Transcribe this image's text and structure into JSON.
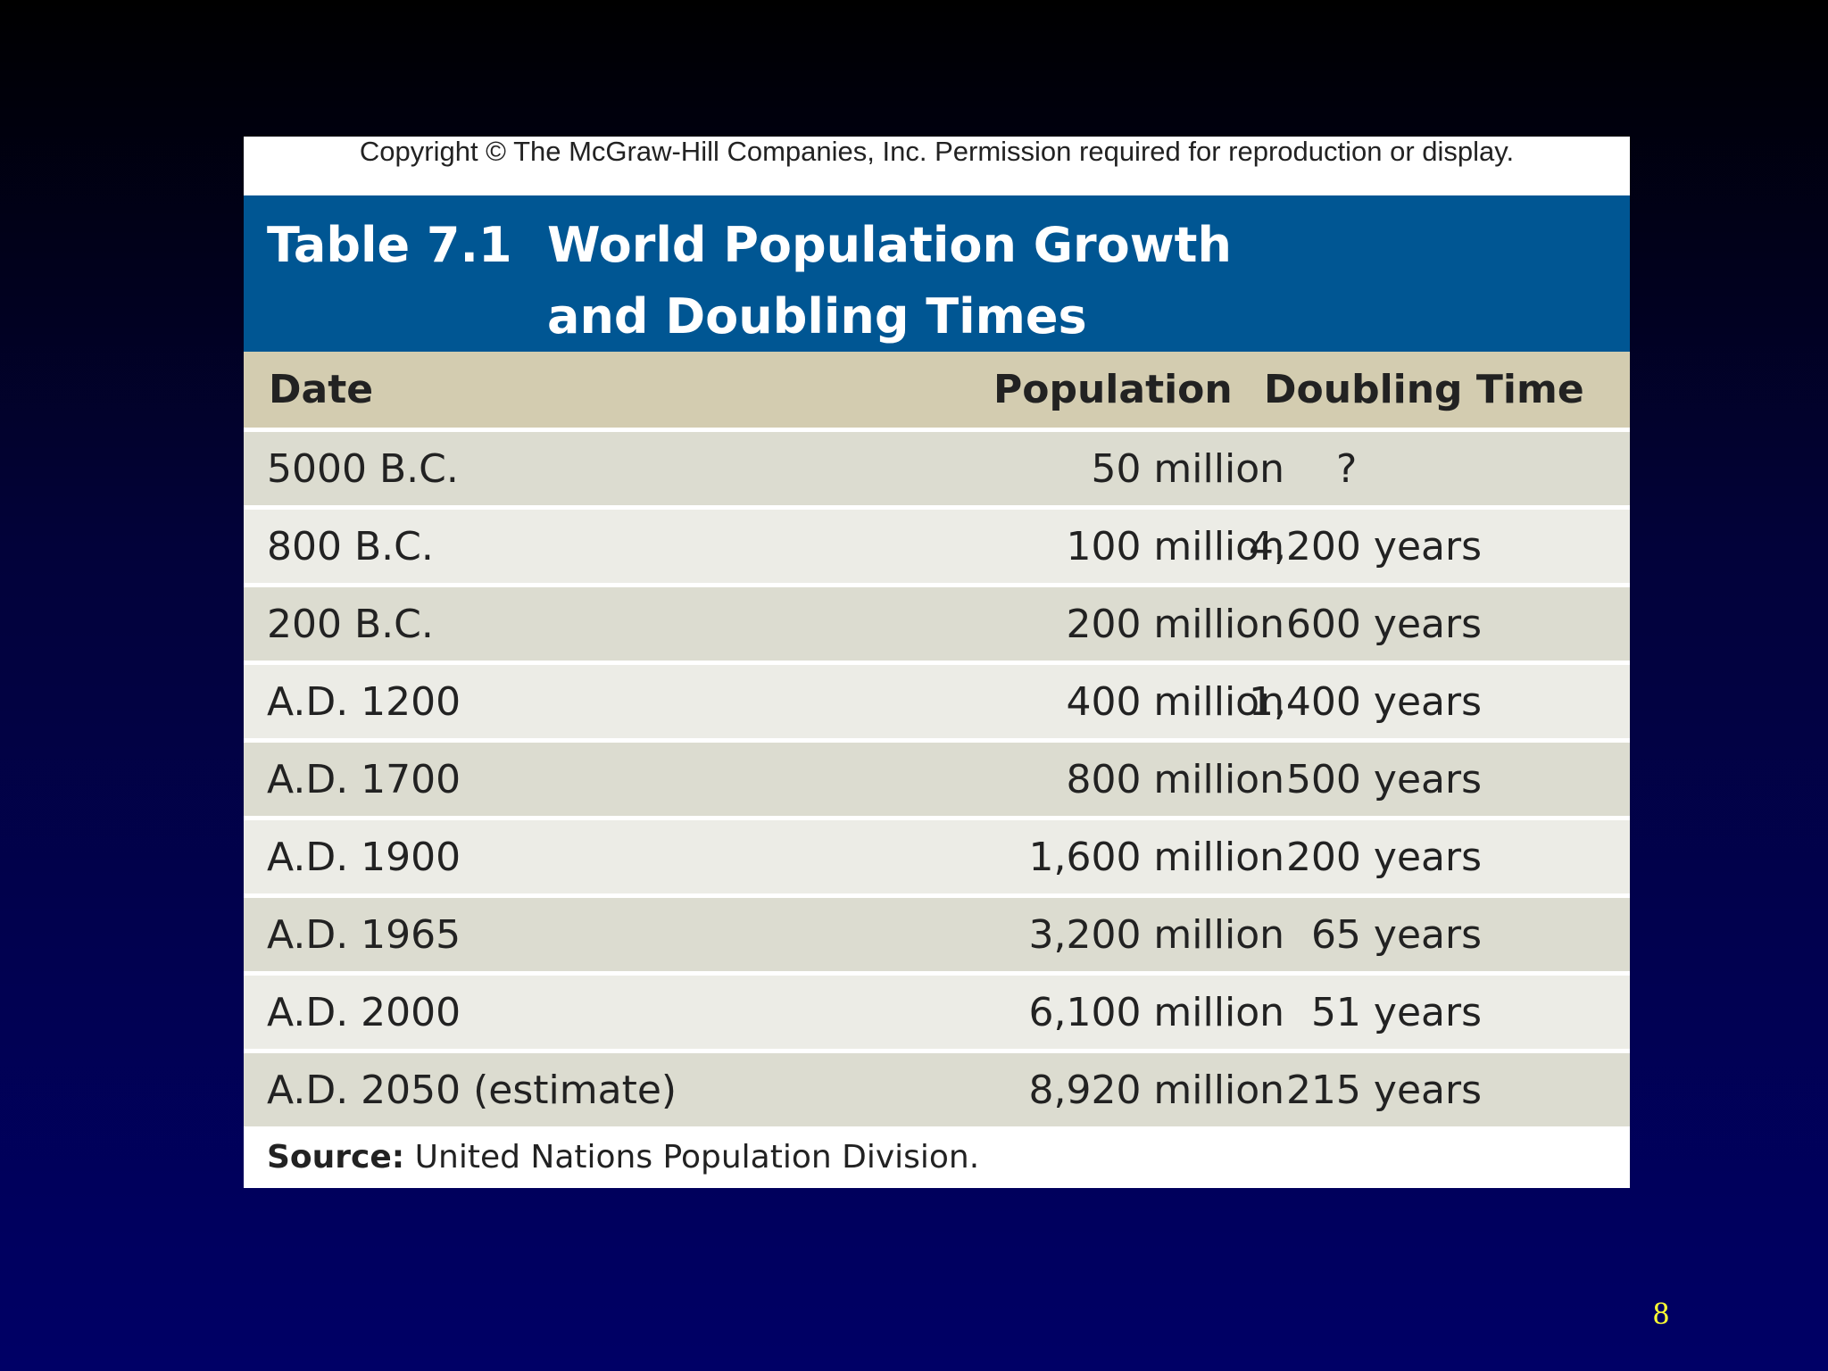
{
  "copyright": "Copyright © The McGraw-Hill Companies, Inc. Permission required for reproduction or display.",
  "table": {
    "label": "Table 7.1",
    "title": [
      "World Population Growth",
      "and Doubling Times"
    ],
    "columns": [
      "Date",
      "Population",
      "Doubling Time"
    ],
    "rows": [
      [
        "5000 B.C.",
        "50 million",
        "?"
      ],
      [
        "800 B.C.",
        "100 million",
        "4,200 years"
      ],
      [
        "200 B.C.",
        "200 million",
        "600 years"
      ],
      [
        "A.D. 1200",
        "400 million",
        "1,400 years"
      ],
      [
        "A.D. 1700",
        "800 million",
        "500 years"
      ],
      [
        "A.D. 1900",
        "1,600 million",
        "200 years"
      ],
      [
        "A.D. 1965",
        "3,200 million",
        "65 years"
      ],
      [
        "A.D. 2000",
        "6,100 million",
        "51 years"
      ],
      [
        "A.D. 2050 (estimate)",
        "8,920 million",
        "215 years"
      ]
    ],
    "source_label": "Source:",
    "source": "United Nations Population Division."
  },
  "page_number": "8"
}
